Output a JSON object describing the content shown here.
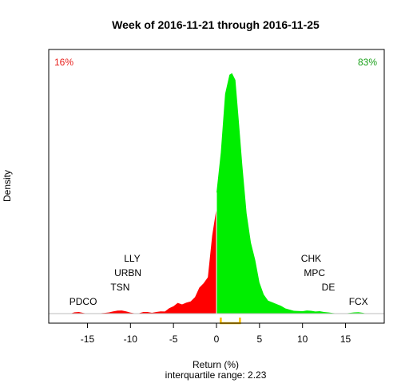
{
  "chart_data": {
    "type": "area",
    "title": "Week of 2016-11-21 through 2016-11-25",
    "xlabel": "Return (%)",
    "ylabel": "Density",
    "subtitle": "interquartile range: 2.23",
    "xlim": [
      -19.5,
      19.5
    ],
    "ylim": [
      0,
      0.285
    ],
    "x_ticks": [
      -15,
      -10,
      -5,
      0,
      5,
      10,
      15
    ],
    "x_tick_labels": [
      "-15",
      "-10",
      "-5",
      "0",
      "5",
      "10",
      "15"
    ],
    "grid": false,
    "corner_labels": [
      {
        "text": "16%",
        "side": "negative",
        "color": "#e8201c"
      },
      {
        "text": "83%",
        "side": "positive",
        "color": "#1aa01a"
      }
    ],
    "series": [
      {
        "side": "negative",
        "color": "#ff0000",
        "x": [
          -17,
          -16.5,
          -16,
          -15.5,
          -15,
          -14.5,
          -14,
          -13.5,
          -13,
          -12.5,
          -12,
          -11.5,
          -11,
          -10.5,
          -10,
          -9.5,
          -9,
          -8.5,
          -8,
          -7.5,
          -7,
          -6.5,
          -6,
          -5.5,
          -5,
          -4.5,
          -4,
          -3.5,
          -3,
          -2.5,
          -2,
          -1.5,
          -1,
          -0.5,
          0
        ],
        "y": [
          0,
          0.0015,
          0.0018,
          0.0008,
          0,
          0,
          0,
          0.0005,
          0.0008,
          0.0014,
          0.0026,
          0.0034,
          0.0036,
          0.0026,
          0.0012,
          0.0004,
          0.0005,
          0.0018,
          0.0018,
          0.0009,
          0.0018,
          0.0026,
          0.0024,
          0.0062,
          0.0086,
          0.0124,
          0.0106,
          0.0126,
          0.014,
          0.019,
          0.03,
          0.035,
          0.042,
          0.09,
          0.122
        ]
      },
      {
        "side": "positive",
        "color": "#00ee00",
        "x": [
          0,
          0.5,
          1,
          1.5,
          1.8,
          2.2,
          2.6,
          3,
          3.5,
          4,
          4.5,
          5,
          5.5,
          6,
          6.5,
          7,
          7.5,
          8,
          8.5,
          9,
          9.5,
          10,
          10.5,
          11,
          11.5,
          12,
          12.5,
          13,
          13.5,
          14,
          14.5,
          15,
          15.5,
          16,
          16.5,
          17,
          17.5
        ],
        "y": [
          0.14,
          0.186,
          0.254,
          0.276,
          0.278,
          0.27,
          0.222,
          0.172,
          0.116,
          0.082,
          0.062,
          0.036,
          0.022,
          0.015,
          0.013,
          0.011,
          0.009,
          0.006,
          0.0046,
          0.0032,
          0.003,
          0.0028,
          0.0036,
          0.0032,
          0.0024,
          0.0028,
          0.0018,
          0.0014,
          0.0006,
          0.0002,
          0,
          0.0003,
          0.0008,
          0.0014,
          0.0016,
          0.0009,
          0
        ]
      }
    ],
    "annotations": [
      {
        "text": "PDCO",
        "x": -15.5,
        "row": 1
      },
      {
        "text": "TSN",
        "x": -11.2,
        "row": 2
      },
      {
        "text": "URBN",
        "x": -10.3,
        "row": 3
      },
      {
        "text": "LLY",
        "x": -9.8,
        "row": 4
      },
      {
        "text": "FCX",
        "x": 16.5,
        "row": 1
      },
      {
        "text": "DE",
        "x": 13.0,
        "row": 2
      },
      {
        "text": "MPC",
        "x": 11.4,
        "row": 3
      },
      {
        "text": "CHK",
        "x": 11.0,
        "row": 4
      }
    ],
    "iqr_bracket": {
      "x": [
        0.5,
        2.73
      ],
      "color": "#ffc000"
    },
    "zero_line_color": "#ffffff",
    "baseline_color": "#bebebe"
  }
}
